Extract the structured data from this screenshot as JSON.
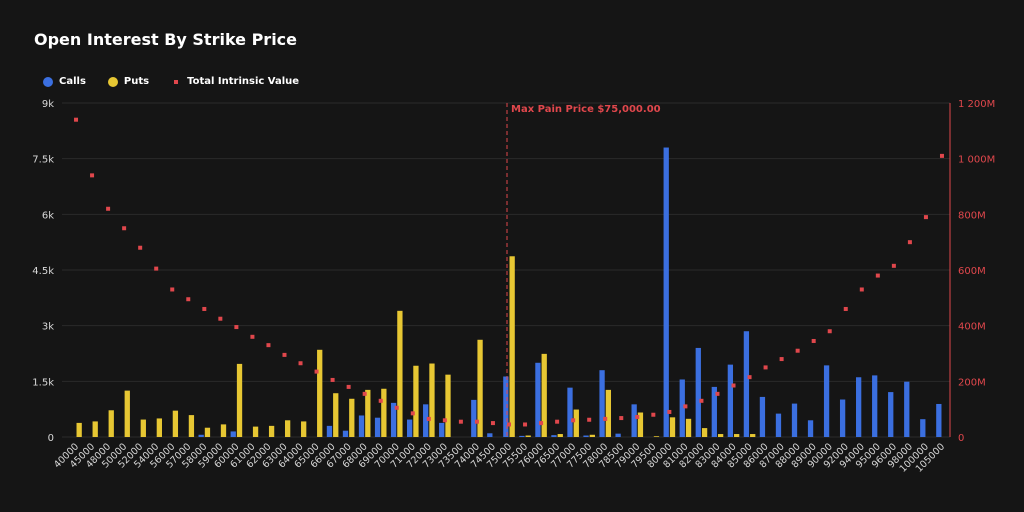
{
  "chart_data": {
    "type": "bar",
    "title": "Open Interest By Strike Price",
    "legend": [
      {
        "name": "Calls",
        "color": "#3b6fe0",
        "shape": "dot"
      },
      {
        "name": "Puts",
        "color": "#e7c733",
        "shape": "dot"
      },
      {
        "name": "Total Intrinsic Value",
        "color": "#e0474c",
        "shape": "square"
      }
    ],
    "annotation": {
      "text": "Max Pain Price $75,000.00",
      "strike": "75000",
      "color": "#e0474c"
    },
    "y_left": {
      "ticks": [
        "0",
        "1.5k",
        "3k",
        "4.5k",
        "6k",
        "7.5k",
        "9k"
      ],
      "range": [
        0,
        9000
      ]
    },
    "y_right": {
      "ticks": [
        "0",
        "200M",
        "400M",
        "600M",
        "800M",
        "1 000M",
        "1 200M"
      ],
      "range": [
        0,
        1200000000
      ]
    },
    "categories": [
      "40000",
      "45000",
      "48000",
      "50000",
      "52000",
      "54000",
      "56000",
      "57000",
      "58000",
      "59000",
      "60000",
      "61000",
      "62000",
      "63000",
      "64000",
      "65000",
      "66000",
      "67000",
      "68000",
      "69000",
      "70000",
      "71000",
      "72000",
      "73000",
      "73500",
      "74000",
      "74500",
      "75000",
      "75500",
      "76000",
      "76500",
      "77000",
      "77500",
      "78000",
      "78500",
      "79000",
      "79500",
      "80000",
      "81000",
      "82000",
      "83000",
      "84000",
      "85000",
      "86000",
      "87000",
      "88000",
      "89000",
      "90000",
      "92000",
      "94000",
      "95000",
      "96000",
      "98000",
      "100000",
      "105000"
    ],
    "series": [
      {
        "name": "Calls",
        "color": "#3b6fe0",
        "values": [
          0,
          0,
          0,
          0,
          0,
          0,
          0,
          0,
          60,
          0,
          150,
          0,
          0,
          0,
          0,
          0,
          300,
          170,
          580,
          520,
          920,
          470,
          880,
          380,
          0,
          1000,
          100,
          1630,
          30,
          2000,
          50,
          1330,
          40,
          1800,
          90,
          880,
          0,
          7800,
          1550,
          2400,
          1350,
          1950,
          2850,
          1080,
          630,
          900,
          450,
          1930,
          1010,
          1610,
          1660,
          1210,
          1490,
          480,
          890
        ]
      },
      {
        "name": "Puts",
        "color": "#e7c733",
        "values": [
          380,
          420,
          720,
          1250,
          470,
          500,
          710,
          590,
          250,
          340,
          1970,
          280,
          300,
          450,
          420,
          2350,
          1180,
          1030,
          1270,
          1300,
          3400,
          1920,
          1980,
          1680,
          0,
          2620,
          0,
          4870,
          40,
          2240,
          80,
          740,
          60,
          1270,
          0,
          660,
          20,
          530,
          490,
          240,
          80,
          80,
          80,
          0,
          0,
          0,
          0,
          0,
          0,
          0,
          0,
          0,
          0,
          0,
          0
        ]
      },
      {
        "name": "Total Intrinsic Value",
        "color": "#e0474c",
        "type": "scatter",
        "values": [
          1140000000,
          940000000,
          820000000,
          750000000,
          680000000,
          605000000,
          530000000,
          495000000,
          460000000,
          425000000,
          395000000,
          360000000,
          330000000,
          295000000,
          265000000,
          235000000,
          205000000,
          180000000,
          155000000,
          130000000,
          105000000,
          85000000,
          65000000,
          60000000,
          55000000,
          55000000,
          50000000,
          45000000,
          45000000,
          50000000,
          55000000,
          60000000,
          62000000,
          65000000,
          68000000,
          72000000,
          80000000,
          90000000,
          110000000,
          130000000,
          155000000,
          185000000,
          215000000,
          250000000,
          280000000,
          310000000,
          345000000,
          380000000,
          460000000,
          530000000,
          580000000,
          615000000,
          700000000,
          790000000,
          1010000000
        ]
      }
    ]
  }
}
